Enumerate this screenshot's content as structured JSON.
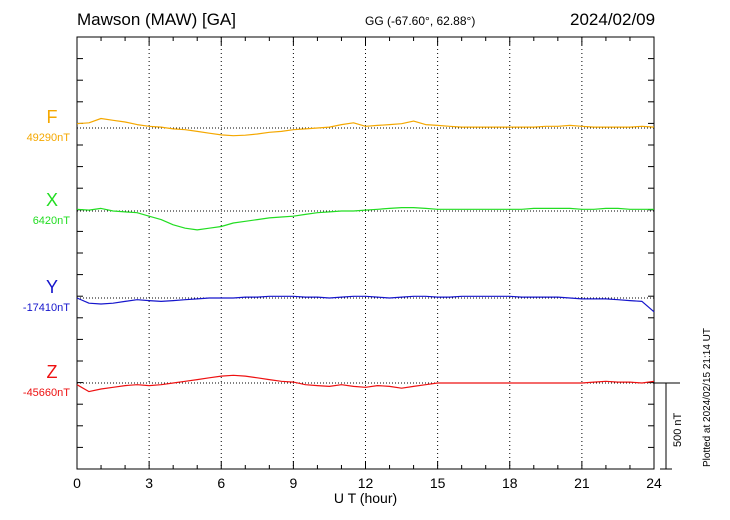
{
  "header": {
    "title": "Mawson (MAW)  [GA]",
    "coords": "GG (-67.60°,  62.88°)",
    "date": "2024/02/09"
  },
  "footer": {
    "plotted": "Plotted at 2024/02/15 21:14 UT"
  },
  "scale_bar": {
    "label": "500 nT",
    "value": 500
  },
  "chart_data": {
    "type": "line",
    "title": "Mawson (MAW)  [GA]",
    "xlabel": "U T (hour)",
    "ylabel": "",
    "xlim": [
      0,
      24
    ],
    "xticks": [
      0,
      3,
      6,
      9,
      12,
      15,
      18,
      21,
      24
    ],
    "grid": true,
    "nT_per_band": 500,
    "series": [
      {
        "name": "F",
        "baseline_label": "49290nT",
        "color": "#f5a800",
        "x": [
          0,
          0.5,
          1,
          1.5,
          2,
          2.5,
          3,
          3.5,
          4,
          4.5,
          5,
          5.5,
          6,
          6.5,
          7,
          7.5,
          8,
          8.5,
          9,
          9.5,
          10,
          10.5,
          11,
          11.5,
          12,
          12.5,
          13,
          13.5,
          14,
          14.5,
          15,
          15.5,
          16,
          16.5,
          17,
          17.5,
          18,
          18.5,
          19,
          19.5,
          20,
          20.5,
          21,
          21.5,
          22,
          22.5,
          23,
          23.5,
          24
        ],
        "values": [
          25,
          30,
          55,
          45,
          35,
          20,
          10,
          5,
          -5,
          -10,
          -20,
          -30,
          -40,
          -45,
          -42,
          -35,
          -25,
          -20,
          -10,
          -5,
          0,
          5,
          20,
          30,
          10,
          15,
          20,
          25,
          40,
          20,
          15,
          10,
          5,
          5,
          5,
          5,
          5,
          5,
          5,
          10,
          10,
          15,
          10,
          5,
          5,
          5,
          5,
          10,
          5
        ]
      },
      {
        "name": "X",
        "baseline_label": "6420nT",
        "color": "#22dd22",
        "x": [
          0,
          0.5,
          1,
          1.5,
          2,
          2.5,
          3,
          3.5,
          4,
          4.5,
          5,
          5.5,
          6,
          6.5,
          7,
          7.5,
          8,
          8.5,
          9,
          9.5,
          10,
          10.5,
          11,
          11.5,
          12,
          12.5,
          13,
          13.5,
          14,
          14.5,
          15,
          15.5,
          16,
          16.5,
          17,
          17.5,
          18,
          18.5,
          19,
          19.5,
          20,
          20.5,
          21,
          21.5,
          22,
          22.5,
          23,
          23.5,
          24
        ],
        "values": [
          10,
          5,
          15,
          0,
          -5,
          -10,
          -30,
          -50,
          -80,
          -100,
          -110,
          -100,
          -90,
          -70,
          -60,
          -50,
          -40,
          -35,
          -30,
          -20,
          -10,
          -5,
          0,
          0,
          5,
          10,
          15,
          20,
          20,
          15,
          10,
          10,
          10,
          10,
          10,
          10,
          10,
          10,
          15,
          15,
          15,
          15,
          10,
          10,
          15,
          15,
          10,
          10,
          10
        ]
      },
      {
        "name": "Y",
        "baseline_label": "-17410nT",
        "color": "#1515cc",
        "x": [
          0,
          0.5,
          1,
          1.5,
          2,
          2.5,
          3,
          3.5,
          4,
          4.5,
          5,
          5.5,
          6,
          6.5,
          7,
          7.5,
          8,
          8.5,
          9,
          9.5,
          10,
          10.5,
          11,
          11.5,
          12,
          12.5,
          13,
          13.5,
          14,
          14.5,
          15,
          15.5,
          16,
          16.5,
          17,
          17.5,
          18,
          18.5,
          19,
          19.5,
          20,
          20.5,
          21,
          21.5,
          22,
          22.5,
          23,
          23.5,
          24
        ],
        "values": [
          0,
          -30,
          -35,
          -30,
          -20,
          -10,
          -15,
          -20,
          -15,
          -10,
          -5,
          0,
          0,
          0,
          5,
          5,
          10,
          10,
          10,
          5,
          5,
          0,
          5,
          10,
          10,
          5,
          0,
          5,
          10,
          10,
          5,
          5,
          10,
          10,
          10,
          10,
          10,
          5,
          5,
          5,
          5,
          0,
          -5,
          -5,
          -5,
          -10,
          -15,
          -20,
          -80
        ]
      },
      {
        "name": "Z",
        "baseline_label": "-45660nT",
        "color": "#ee1111",
        "x": [
          0,
          0.5,
          1,
          1.5,
          2,
          2.5,
          3,
          3.5,
          4,
          4.5,
          5,
          5.5,
          6,
          6.5,
          7,
          7.5,
          8,
          8.5,
          9,
          9.5,
          10,
          10.5,
          11,
          11.5,
          12,
          12.5,
          13,
          13.5,
          14,
          14.5,
          15,
          15.5,
          16,
          16.5,
          17,
          17.5,
          18,
          18.5,
          19,
          19.5,
          20,
          20.5,
          21,
          21.5,
          22,
          22.5,
          23,
          23.5,
          24
        ],
        "values": [
          -10,
          -50,
          -35,
          -25,
          -15,
          -10,
          -15,
          -10,
          0,
          10,
          20,
          30,
          40,
          45,
          40,
          30,
          20,
          10,
          5,
          -10,
          -15,
          -20,
          -10,
          -20,
          -25,
          -15,
          -20,
          -30,
          -20,
          -10,
          0,
          0,
          0,
          0,
          0,
          0,
          0,
          0,
          0,
          0,
          0,
          0,
          0,
          5,
          10,
          5,
          5,
          0,
          10
        ]
      }
    ]
  }
}
